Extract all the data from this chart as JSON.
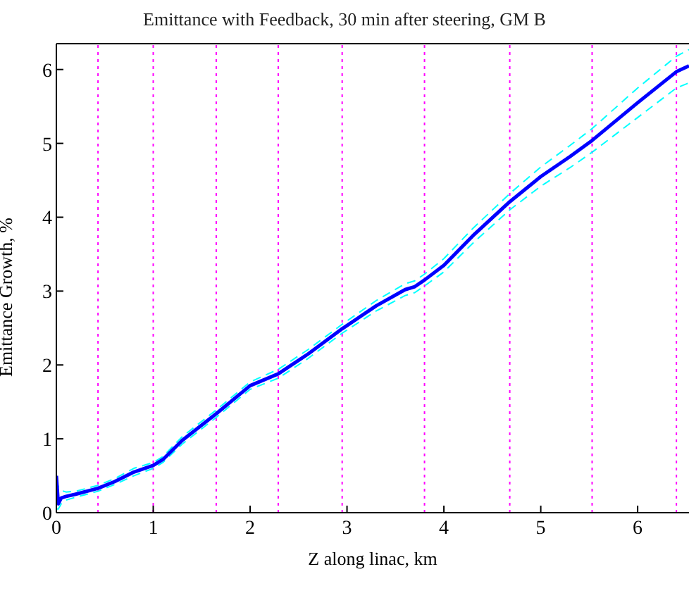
{
  "chart_data": {
    "type": "line",
    "title": "Emittance with Feedback, 30  min after steering, GM B",
    "xlabel": "Z along linac, km",
    "ylabel": "Emittance Growth, %",
    "x": [
      0,
      0.02,
      0.05,
      0.1,
      0.2,
      0.43,
      0.6,
      0.8,
      1.0,
      1.1,
      1.3,
      1.65,
      2.0,
      2.29,
      2.6,
      2.95,
      3.3,
      3.6,
      3.7,
      3.8,
      4.0,
      4.3,
      4.68,
      5.0,
      5.3,
      5.53,
      6.0,
      6.4,
      6.53
    ],
    "series": [
      {
        "color": "#00ffff",
        "line_style": "dashed",
        "values": [
          0.05,
          0.05,
          0.12,
          0.17,
          0.21,
          0.29,
          0.38,
          0.5,
          0.6,
          0.68,
          0.93,
          1.29,
          1.67,
          1.82,
          2.09,
          2.43,
          2.73,
          2.94,
          2.98,
          3.07,
          3.26,
          3.65,
          4.1,
          4.42,
          4.67,
          4.88,
          5.35,
          5.75,
          5.82
        ]
      },
      {
        "color": "#00ffff",
        "line_style": "dashed",
        "values": [
          0.45,
          0.35,
          0.3,
          0.28,
          0.29,
          0.37,
          0.46,
          0.6,
          0.68,
          0.76,
          1.03,
          1.39,
          1.77,
          1.94,
          2.21,
          2.55,
          2.87,
          3.1,
          3.14,
          3.23,
          3.44,
          3.85,
          4.32,
          4.68,
          4.97,
          5.2,
          5.75,
          6.18,
          6.27
        ]
      },
      {
        "color": "#0000ff",
        "line_style": "solid",
        "values": [
          0.5,
          0.12,
          0.2,
          0.22,
          0.25,
          0.33,
          0.42,
          0.55,
          0.64,
          0.72,
          0.98,
          1.34,
          1.72,
          1.88,
          2.15,
          2.49,
          2.8,
          3.02,
          3.06,
          3.15,
          3.35,
          3.75,
          4.21,
          4.55,
          4.82,
          5.04,
          5.55,
          5.97,
          6.05
        ]
      }
    ],
    "xlim": [
      0,
      6.53
    ],
    "ylim": [
      0,
      6.35
    ],
    "xticks": [
      0,
      1,
      2,
      3,
      4,
      5,
      6
    ],
    "yticks": [
      0,
      1,
      2,
      3,
      4,
      5,
      6
    ],
    "grid": false,
    "marker": "none",
    "ref_lines": [
      {
        "axis": "x",
        "value": 0.43,
        "color": "#ff00ff",
        "line_style": "dotted"
      },
      {
        "axis": "x",
        "value": 1.0,
        "color": "#ff00ff",
        "line_style": "dotted"
      },
      {
        "axis": "x",
        "value": 1.65,
        "color": "#ff00ff",
        "line_style": "dotted"
      },
      {
        "axis": "x",
        "value": 2.29,
        "color": "#ff00ff",
        "line_style": "dotted"
      },
      {
        "axis": "x",
        "value": 2.95,
        "color": "#ff00ff",
        "line_style": "dotted"
      },
      {
        "axis": "x",
        "value": 3.8,
        "color": "#ff00ff",
        "line_style": "dotted"
      },
      {
        "axis": "x",
        "value": 4.68,
        "color": "#ff00ff",
        "line_style": "dotted"
      },
      {
        "axis": "x",
        "value": 5.53,
        "color": "#ff00ff",
        "line_style": "dotted"
      },
      {
        "axis": "x",
        "value": 6.4,
        "color": "#ff00ff",
        "line_style": "dotted"
      }
    ]
  }
}
